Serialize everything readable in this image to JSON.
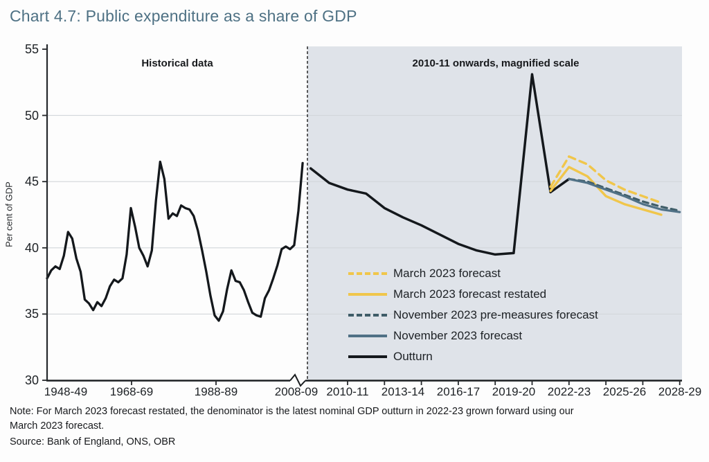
{
  "title": "Chart 4.7: Public expenditure as a share of GDP",
  "annotations": {
    "historical_label": "Historical data",
    "magnified_label": "2010-11 onwards, magnified scale"
  },
  "note_line1": "Note: For March 2023 forecast restated, the denominator is the latest nominal GDP outturn in 2022-23 grown forward using our",
  "note_line2": "March 2023 forecast.",
  "source": "Source: Bank of England, ONS, OBR",
  "colors": {
    "title_text": "#4e7184",
    "magnified_panel_background": "#dfe3e9",
    "gridline": "#d2d6da",
    "axis": "#1b1e21",
    "outturn_line": "#14181c",
    "march_2023_forecast_line": "#f0c64b",
    "march_2023_restated_line": "#f0c64b",
    "november_2023_pre_measures_line": "#3f5d68",
    "november_2023_forecast_line": "#507186"
  },
  "chart_data": {
    "type": "line",
    "title": "Chart 4.7: Public expenditure as a share of GDP",
    "xlabel": "",
    "ylabel": "Per cent of GDP",
    "ylim": [
      30,
      55
    ],
    "y_ticks": [
      55,
      50,
      45,
      40,
      35,
      30
    ],
    "y_gridlines": [
      35,
      40,
      45,
      50
    ],
    "grid": true,
    "legend_position": "inside lower-right panel",
    "x_axis_note": "axis has a scale break after 2008-09; right-hand panel 2010-11 onwards is on a magnified (stretched) year scale",
    "x_tick_labels_left": [
      "1948-49",
      "1968-69",
      "1988-89",
      "2008-09"
    ],
    "x_tick_labels_right": [
      "2010-11",
      "2013-14",
      "2016-17",
      "2019-20",
      "2022-23",
      "2025-26",
      "2028-29"
    ],
    "legend": [
      {
        "label": "March 2023 forecast",
        "color": "#f0c64b",
        "style": "dashed"
      },
      {
        "label": "March 2023 forecast restated",
        "color": "#f0c64b",
        "style": "solid"
      },
      {
        "label": "November 2023 pre-measures forecast",
        "color": "#3f5d68",
        "style": "dashed"
      },
      {
        "label": "November 2023 forecast",
        "color": "#507186",
        "style": "solid"
      },
      {
        "label": "Outturn",
        "color": "#14181c",
        "style": "solid"
      }
    ],
    "series": [
      {
        "id": "outturn-historical",
        "name": "Outturn (historical panel)",
        "region": "historical",
        "color": "#14181c",
        "style": "solid",
        "width": 3.3,
        "points": [
          [
            1948,
            37.7
          ],
          [
            1949,
            38.3
          ],
          [
            1950,
            38.6
          ],
          [
            1951,
            38.4
          ],
          [
            1952,
            39.4
          ],
          [
            1953,
            41.2
          ],
          [
            1954,
            40.7
          ],
          [
            1955,
            39.2
          ],
          [
            1956,
            38.2
          ],
          [
            1957,
            36.1
          ],
          [
            1958,
            35.8
          ],
          [
            1959,
            35.3
          ],
          [
            1960,
            35.9
          ],
          [
            1961,
            35.6
          ],
          [
            1962,
            36.2
          ],
          [
            1963,
            37.1
          ],
          [
            1964,
            37.6
          ],
          [
            1965,
            37.4
          ],
          [
            1966,
            37.7
          ],
          [
            1967,
            39.5
          ],
          [
            1968,
            43.0
          ],
          [
            1969,
            41.6
          ],
          [
            1970,
            40.0
          ],
          [
            1971,
            39.4
          ],
          [
            1972,
            38.6
          ],
          [
            1973,
            39.8
          ],
          [
            1974,
            43.6
          ],
          [
            1975,
            46.5
          ],
          [
            1976,
            45.2
          ],
          [
            1977,
            42.2
          ],
          [
            1978,
            42.6
          ],
          [
            1979,
            42.4
          ],
          [
            1980,
            43.2
          ],
          [
            1981,
            43.0
          ],
          [
            1982,
            42.9
          ],
          [
            1983,
            42.4
          ],
          [
            1984,
            41.3
          ],
          [
            1985,
            39.8
          ],
          [
            1986,
            38.2
          ],
          [
            1987,
            36.4
          ],
          [
            1988,
            34.9
          ],
          [
            1989,
            34.5
          ],
          [
            1990,
            35.2
          ],
          [
            1991,
            36.9
          ],
          [
            1992,
            38.3
          ],
          [
            1993,
            37.5
          ],
          [
            1994,
            37.4
          ],
          [
            1995,
            36.8
          ],
          [
            1996,
            35.9
          ],
          [
            1997,
            35.1
          ],
          [
            1998,
            34.9
          ],
          [
            1999,
            34.8
          ],
          [
            2000,
            36.2
          ],
          [
            2001,
            36.8
          ],
          [
            2002,
            37.7
          ],
          [
            2003,
            38.7
          ],
          [
            2004,
            39.9
          ],
          [
            2005,
            40.1
          ],
          [
            2006,
            39.9
          ],
          [
            2007,
            40.2
          ],
          [
            2008,
            42.8
          ],
          [
            2009,
            46.4
          ]
        ]
      },
      {
        "id": "outturn-magnified",
        "name": "Outturn",
        "region": "magnified",
        "color": "#14181c",
        "style": "solid",
        "width": 3.5,
        "points": [
          [
            2008,
            46.0
          ],
          [
            2009,
            44.9
          ],
          [
            2010,
            44.4
          ],
          [
            2011,
            44.1
          ],
          [
            2012,
            43.0
          ],
          [
            2013,
            42.3
          ],
          [
            2014,
            41.7
          ],
          [
            2015,
            41.0
          ],
          [
            2016,
            40.3
          ],
          [
            2017,
            39.8
          ],
          [
            2018,
            39.5
          ],
          [
            2019,
            39.6
          ],
          [
            2020,
            53.1
          ],
          [
            2021,
            44.2
          ],
          [
            2022,
            45.2
          ]
        ]
      },
      {
        "id": "march-2023-forecast",
        "name": "March 2023 forecast",
        "region": "magnified",
        "color": "#f0c64b",
        "style": "dashed",
        "dash": "10,7",
        "width": 3.4,
        "points": [
          [
            2021,
            44.6
          ],
          [
            2022,
            46.9
          ],
          [
            2023,
            46.3
          ],
          [
            2024,
            45.1
          ],
          [
            2025,
            44.4
          ],
          [
            2026,
            43.9
          ],
          [
            2027,
            43.4
          ]
        ]
      },
      {
        "id": "march-2023-forecast-restated",
        "name": "March 2023 forecast restated",
        "region": "magnified",
        "color": "#f0c64b",
        "style": "solid",
        "width": 3.4,
        "points": [
          [
            2021,
            44.3
          ],
          [
            2022,
            46.1
          ],
          [
            2023,
            45.4
          ],
          [
            2024,
            43.9
          ],
          [
            2025,
            43.3
          ],
          [
            2026,
            42.9
          ],
          [
            2027,
            42.5
          ]
        ]
      },
      {
        "id": "november-2023-pre-measures-forecast",
        "name": "November 2023 pre-measures forecast",
        "region": "magnified",
        "color": "#3f5d68",
        "style": "dashed",
        "dash": "8,6",
        "width": 3.2,
        "points": [
          [
            2022,
            45.2
          ],
          [
            2023,
            45.0
          ],
          [
            2024,
            44.5
          ],
          [
            2025,
            44.0
          ],
          [
            2026,
            43.5
          ],
          [
            2027,
            43.1
          ],
          [
            2028,
            42.8
          ]
        ]
      },
      {
        "id": "november-2023-forecast",
        "name": "November 2023 forecast",
        "region": "magnified",
        "color": "#507186",
        "style": "solid",
        "width": 3.2,
        "points": [
          [
            2022,
            45.2
          ],
          [
            2023,
            44.9
          ],
          [
            2024,
            44.4
          ],
          [
            2025,
            43.9
          ],
          [
            2026,
            43.3
          ],
          [
            2027,
            42.9
          ],
          [
            2028,
            42.7
          ]
        ]
      }
    ]
  }
}
